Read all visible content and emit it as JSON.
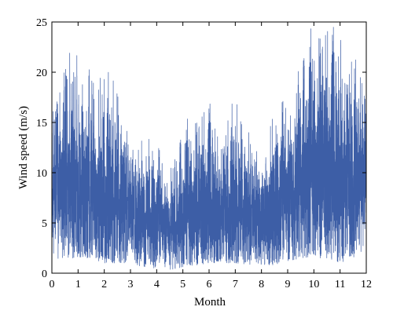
{
  "chart_data": {
    "type": "line",
    "xlabel": "Month",
    "ylabel": "Wind speed (m/s)",
    "xlim": [
      0,
      12
    ],
    "ylim": [
      0,
      25
    ],
    "xticks": [
      0,
      1,
      2,
      3,
      4,
      5,
      6,
      7,
      8,
      9,
      10,
      11,
      12
    ],
    "yticks": [
      0,
      5,
      10,
      15,
      20,
      25
    ],
    "grid": false,
    "line_color": "#3d5ea6",
    "series": [
      {
        "sampling": "hourly (approx.)",
        "envelope": {
          "x": [
            0,
            0.5,
            1,
            1.5,
            2,
            2.5,
            3,
            3.5,
            4,
            4.5,
            5,
            5.5,
            6,
            6.5,
            7,
            7.5,
            8,
            8.5,
            9,
            9.5,
            10,
            10.5,
            11,
            11.5,
            12
          ],
          "mean": [
            8.5,
            9.0,
            8.5,
            8.0,
            7.5,
            7.0,
            6.5,
            5.8,
            5.0,
            4.6,
            5.4,
            5.9,
            6.1,
            6.0,
            6.3,
            6.0,
            5.6,
            5.6,
            7.5,
            8.8,
            9.5,
            9.6,
            9.1,
            9.0,
            8.8
          ],
          "max": [
            17,
            21,
            23.5,
            20,
            20.5,
            19,
            14,
            14,
            13,
            10,
            15,
            16,
            17,
            15,
            17.5,
            14,
            14,
            16,
            18,
            22,
            25,
            25,
            24,
            22,
            18
          ],
          "min": [
            1,
            1.5,
            1.5,
            1.5,
            1,
            1,
            1,
            0.5,
            0.5,
            0.3,
            0.5,
            0.8,
            1,
            1,
            1,
            0.8,
            0.8,
            0.8,
            1,
            1.5,
            1.5,
            1.5,
            1,
            1.5,
            2
          ]
        }
      }
    ]
  }
}
